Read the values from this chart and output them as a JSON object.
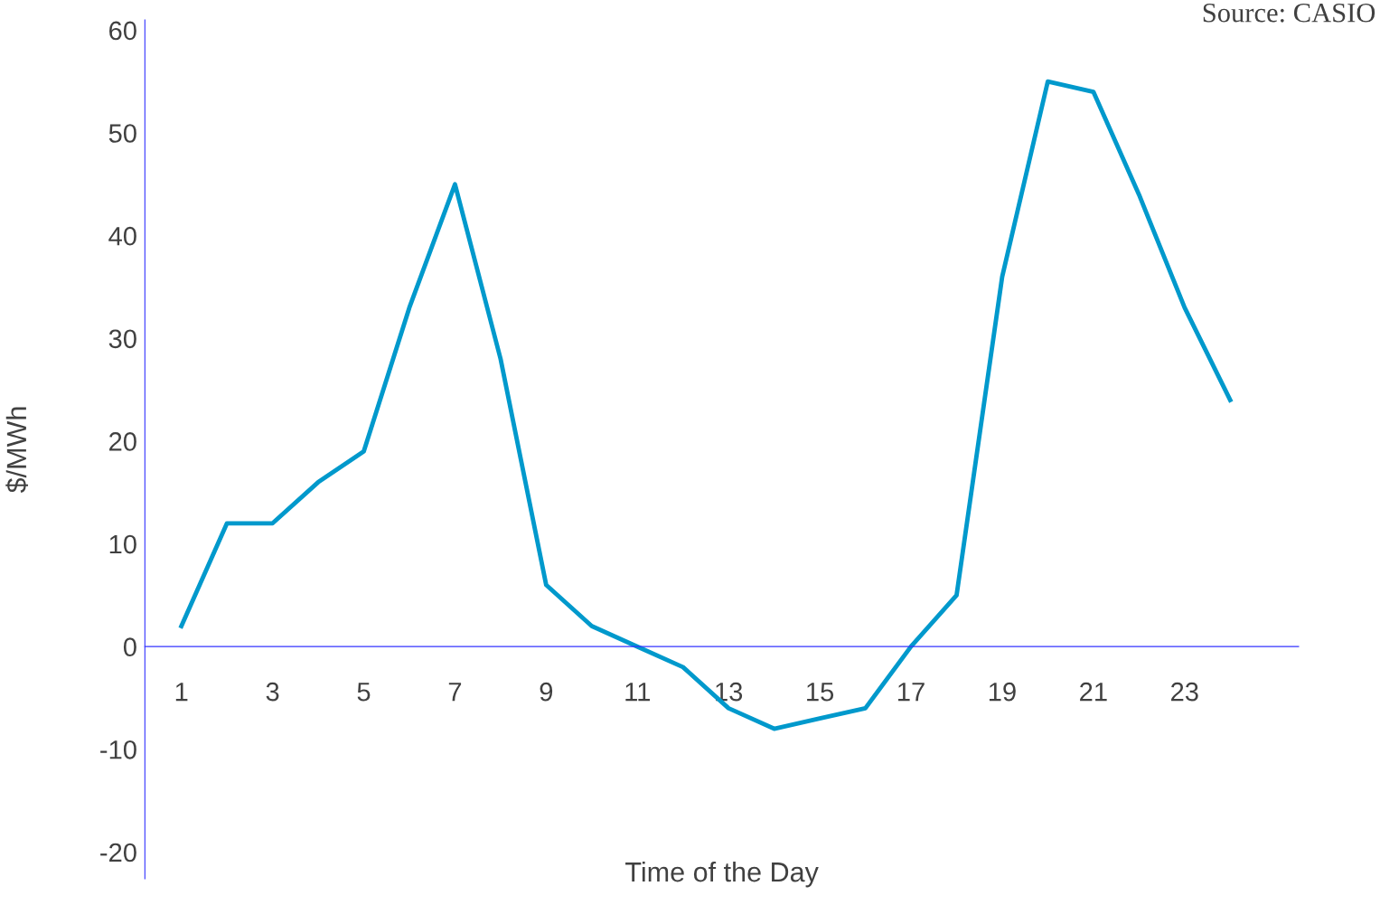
{
  "chart_data": {
    "type": "line",
    "xlabel": "Time of the Day",
    "ylabel": "$/MWh",
    "annotations": [
      "Source: CASIO"
    ],
    "x": [
      1,
      2,
      3,
      4,
      5,
      6,
      7,
      8,
      9,
      10,
      11,
      12,
      13,
      14,
      15,
      16,
      17,
      18,
      19,
      20,
      21,
      22,
      23,
      24
    ],
    "series": [
      {
        "color": "#0099cc",
        "values": [
          2,
          12,
          12,
          16,
          19,
          33,
          45,
          28,
          6,
          2,
          0,
          -2,
          -6,
          -8,
          -7,
          -6,
          0,
          5,
          36,
          55,
          54,
          44,
          33,
          24
        ]
      }
    ],
    "xlim": [
      0.2,
      25.5
    ],
    "xticks": [
      1,
      3,
      5,
      7,
      9,
      11,
      13,
      15,
      17,
      19,
      21,
      23
    ],
    "ylim": [
      -22.6,
      61
    ],
    "yticks": [
      -20,
      -10,
      0,
      10,
      20,
      30,
      40,
      50,
      60
    ],
    "grid": false,
    "legend": false,
    "marker": "none",
    "line_style": "solid"
  }
}
